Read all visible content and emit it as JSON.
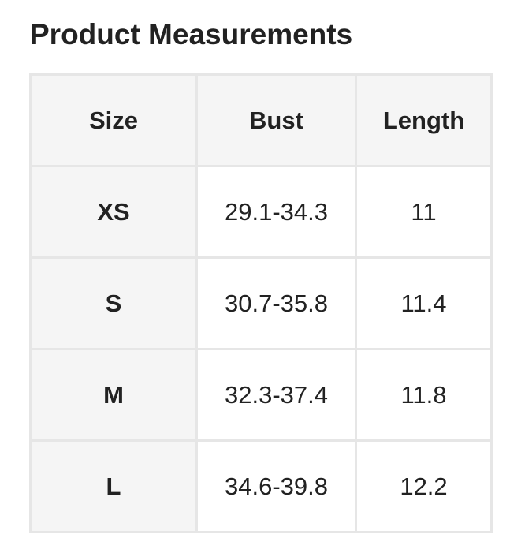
{
  "title": "Product Measurements",
  "table": {
    "headers": [
      "Size",
      "Bust",
      "Length"
    ],
    "rows": [
      [
        "XS",
        "29.1-34.3",
        "11"
      ],
      [
        "S",
        "30.7-35.8",
        "11.4"
      ],
      [
        "M",
        "32.3-37.4",
        "11.8"
      ],
      [
        "L",
        "34.6-39.8",
        "12.2"
      ]
    ]
  }
}
